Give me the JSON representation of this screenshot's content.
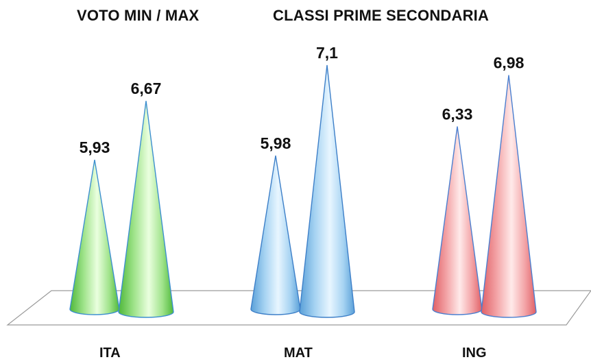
{
  "header": {
    "title_left": "VOTO MIN / MAX",
    "title_right": "CLASSI PRIME SECONDARIA"
  },
  "chart_data": {
    "type": "bar",
    "shape": "cone",
    "categories": [
      "ITA",
      "MAT",
      "ING"
    ],
    "series": [
      {
        "values": [
          5.93,
          5.98,
          6.33
        ]
      },
      {
        "values": [
          6.67,
          7.1,
          6.98
        ]
      }
    ],
    "data_labels": [
      [
        "5,93",
        "6,67"
      ],
      [
        "5,98",
        "7,1"
      ],
      [
        "6,33",
        "6,98"
      ]
    ],
    "category_colors": {
      "ITA": {
        "light": "#eaffdf",
        "mid": "#9fe38a",
        "dark": "#4fb83a",
        "edge": "#3d8fd0"
      },
      "MAT": {
        "light": "#e8f6ff",
        "mid": "#a6d3f2",
        "dark": "#5aa0d8",
        "edge": "#3d7fc8"
      },
      "ING": {
        "light": "#ffeaea",
        "mid": "#f3a3a6",
        "dark": "#e06066",
        "edge": "#4a7fd0"
      }
    },
    "grid": false,
    "legend": "none",
    "ylim": [
      5,
      7.3
    ]
  }
}
